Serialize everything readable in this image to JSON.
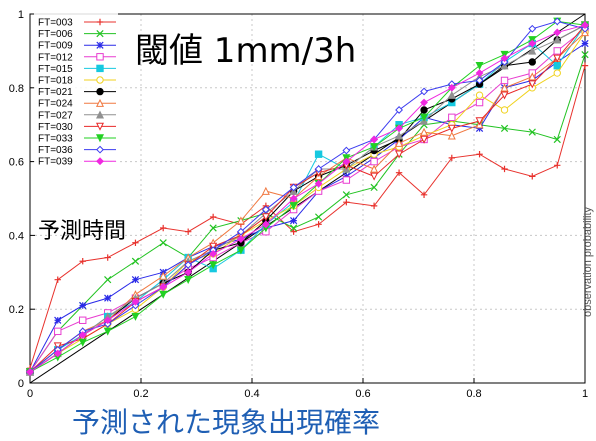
{
  "chart_data": {
    "type": "line",
    "title": "閾値 1mm/3h",
    "legend_title": "予測時間",
    "xlabel": "予測された現象出現確率",
    "ylabel": "observation probability",
    "xlim": [
      0,
      1
    ],
    "ylim": [
      0,
      1
    ],
    "x_ticks": [
      "0",
      "0.2",
      "0.4",
      "0.6",
      "0.8",
      "1"
    ],
    "y_ticks": [
      "0",
      "0.2",
      "0.4",
      "0.6",
      "0.8",
      "1"
    ],
    "grid": true,
    "legend_position": "top-left",
    "x": [
      0,
      0.05,
      0.095,
      0.14,
      0.19,
      0.24,
      0.285,
      0.33,
      0.38,
      0.425,
      0.475,
      0.52,
      0.57,
      0.62,
      0.665,
      0.71,
      0.76,
      0.81,
      0.855,
      0.905,
      0.95,
      1.0
    ],
    "series": [
      {
        "name": "FT=003",
        "color": "#e8322d",
        "marker": "plus",
        "values": [
          0.04,
          0.28,
          0.33,
          0.34,
          0.38,
          0.42,
          0.41,
          0.45,
          0.43,
          0.48,
          0.41,
          0.43,
          0.49,
          0.48,
          0.57,
          0.51,
          0.61,
          0.62,
          0.58,
          0.56,
          0.59,
          0.86
        ]
      },
      {
        "name": "FT=006",
        "color": "#22c322",
        "marker": "x",
        "values": [
          0.03,
          0.14,
          0.21,
          0.28,
          0.33,
          0.38,
          0.34,
          0.42,
          0.44,
          0.46,
          0.42,
          0.45,
          0.51,
          0.53,
          0.62,
          0.7,
          0.71,
          0.7,
          0.69,
          0.68,
          0.66,
          0.89
        ]
      },
      {
        "name": "FT=009",
        "color": "#2a2ae8",
        "marker": "asterisk",
        "values": [
          0.03,
          0.17,
          0.21,
          0.23,
          0.28,
          0.3,
          0.34,
          0.37,
          0.39,
          0.42,
          0.44,
          0.52,
          0.56,
          0.61,
          0.66,
          0.72,
          0.7,
          0.69,
          0.8,
          0.82,
          0.87,
          0.92
        ]
      },
      {
        "name": "FT=012",
        "color": "#e83cd0",
        "marker": "square-open",
        "values": [
          0.03,
          0.14,
          0.17,
          0.19,
          0.23,
          0.27,
          0.31,
          0.34,
          0.38,
          0.41,
          0.47,
          0.52,
          0.55,
          0.6,
          0.64,
          0.66,
          0.72,
          0.76,
          0.82,
          0.84,
          0.9,
          0.96
        ]
      },
      {
        "name": "FT=015",
        "color": "#16c9e0",
        "marker": "square",
        "values": [
          0.03,
          0.09,
          0.13,
          0.18,
          0.22,
          0.28,
          0.34,
          0.31,
          0.36,
          0.43,
          0.49,
          0.62,
          0.58,
          0.64,
          0.7,
          0.72,
          0.76,
          0.81,
          0.87,
          0.92,
          0.86,
          0.97
        ]
      },
      {
        "name": "FT=018",
        "color": "#f0d21e",
        "marker": "circle-open",
        "values": [
          0.03,
          0.08,
          0.12,
          0.16,
          0.2,
          0.26,
          0.33,
          0.35,
          0.4,
          0.44,
          0.48,
          0.53,
          0.58,
          0.62,
          0.64,
          0.67,
          0.7,
          0.78,
          0.74,
          0.8,
          0.84,
          0.95
        ]
      },
      {
        "name": "FT=021",
        "color": "#000000",
        "marker": "circle",
        "values": [
          0.03,
          0.08,
          0.13,
          0.17,
          0.23,
          0.27,
          0.3,
          0.36,
          0.38,
          0.44,
          0.52,
          0.56,
          0.59,
          0.63,
          0.66,
          0.74,
          0.77,
          0.81,
          0.86,
          0.87,
          0.93,
          0.97
        ]
      },
      {
        "name": "FT=024",
        "color": "#f07840",
        "marker": "triangle-open",
        "values": [
          0.03,
          0.09,
          0.14,
          0.17,
          0.24,
          0.29,
          0.34,
          0.38,
          0.44,
          0.52,
          0.5,
          0.56,
          0.61,
          0.58,
          0.65,
          0.68,
          0.67,
          0.7,
          0.8,
          0.83,
          0.88,
          0.95
        ]
      },
      {
        "name": "FT=027",
        "color": "#909090",
        "marker": "triangle",
        "values": [
          0.03,
          0.08,
          0.13,
          0.18,
          0.23,
          0.27,
          0.33,
          0.36,
          0.4,
          0.46,
          0.52,
          0.58,
          0.58,
          0.64,
          0.67,
          0.71,
          0.78,
          0.83,
          0.86,
          0.9,
          0.93,
          0.97
        ]
      },
      {
        "name": "FT=030",
        "color": "#e82828",
        "marker": "triangle-down-open",
        "values": [
          0.03,
          0.1,
          0.12,
          0.16,
          0.22,
          0.26,
          0.32,
          0.37,
          0.4,
          0.45,
          0.53,
          0.57,
          0.59,
          0.56,
          0.62,
          0.66,
          0.69,
          0.71,
          0.78,
          0.81,
          0.88,
          0.97
        ]
      },
      {
        "name": "FT=033",
        "color": "#22d022",
        "marker": "triangle-down",
        "values": [
          0.03,
          0.07,
          0.11,
          0.14,
          0.18,
          0.24,
          0.28,
          0.32,
          0.36,
          0.42,
          0.48,
          0.54,
          0.61,
          0.64,
          0.69,
          0.72,
          0.8,
          0.86,
          0.89,
          0.93,
          0.98,
          0.97
        ]
      },
      {
        "name": "FT=036",
        "color": "#3c3cf0",
        "marker": "diamond-open",
        "values": [
          0.03,
          0.09,
          0.14,
          0.16,
          0.21,
          0.26,
          0.32,
          0.36,
          0.41,
          0.47,
          0.53,
          0.58,
          0.63,
          0.66,
          0.74,
          0.79,
          0.81,
          0.82,
          0.87,
          0.96,
          0.98,
          0.96
        ]
      },
      {
        "name": "FT=039",
        "color": "#f028e0",
        "marker": "diamond",
        "values": [
          0.03,
          0.08,
          0.13,
          0.17,
          0.22,
          0.26,
          0.3,
          0.35,
          0.39,
          0.43,
          0.5,
          0.54,
          0.6,
          0.66,
          0.69,
          0.76,
          0.8,
          0.84,
          0.88,
          0.92,
          0.95,
          0.97
        ]
      }
    ]
  }
}
